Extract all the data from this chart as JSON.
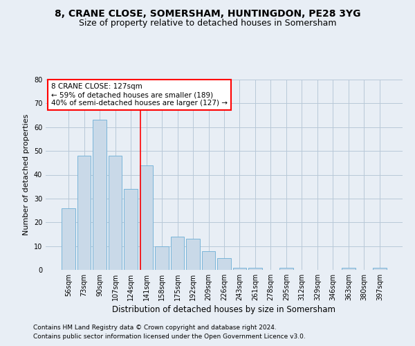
{
  "title1": "8, CRANE CLOSE, SOMERSHAM, HUNTINGDON, PE28 3YG",
  "title2": "Size of property relative to detached houses in Somersham",
  "xlabel": "Distribution of detached houses by size in Somersham",
  "ylabel": "Number of detached properties",
  "bar_labels": [
    "56sqm",
    "73sqm",
    "90sqm",
    "107sqm",
    "124sqm",
    "141sqm",
    "158sqm",
    "175sqm",
    "192sqm",
    "209sqm",
    "226sqm",
    "243sqm",
    "261sqm",
    "278sqm",
    "295sqm",
    "312sqm",
    "329sqm",
    "346sqm",
    "363sqm",
    "380sqm",
    "397sqm"
  ],
  "bar_values": [
    26,
    48,
    63,
    48,
    34,
    44,
    10,
    14,
    13,
    8,
    5,
    1,
    1,
    0,
    1,
    0,
    0,
    0,
    1,
    0,
    1
  ],
  "bar_color": "#c9d9e8",
  "bar_edgecolor": "#6baed6",
  "grid_color": "#b8c8d8",
  "background_color": "#e8eef5",
  "annotation_text": "8 CRANE CLOSE: 127sqm\n← 59% of detached houses are smaller (189)\n40% of semi-detached houses are larger (127) →",
  "annotation_box_color": "white",
  "annotation_box_edgecolor": "red",
  "vline_x_index": 4.6,
  "vline_color": "red",
  "ylim": [
    0,
    80
  ],
  "yticks": [
    0,
    10,
    20,
    30,
    40,
    50,
    60,
    70,
    80
  ],
  "footer1": "Contains HM Land Registry data © Crown copyright and database right 2024.",
  "footer2": "Contains public sector information licensed under the Open Government Licence v3.0.",
  "title1_fontsize": 10,
  "title2_fontsize": 9,
  "xlabel_fontsize": 8.5,
  "ylabel_fontsize": 8,
  "tick_fontsize": 7,
  "annotation_fontsize": 7.5,
  "footer_fontsize": 6.5
}
